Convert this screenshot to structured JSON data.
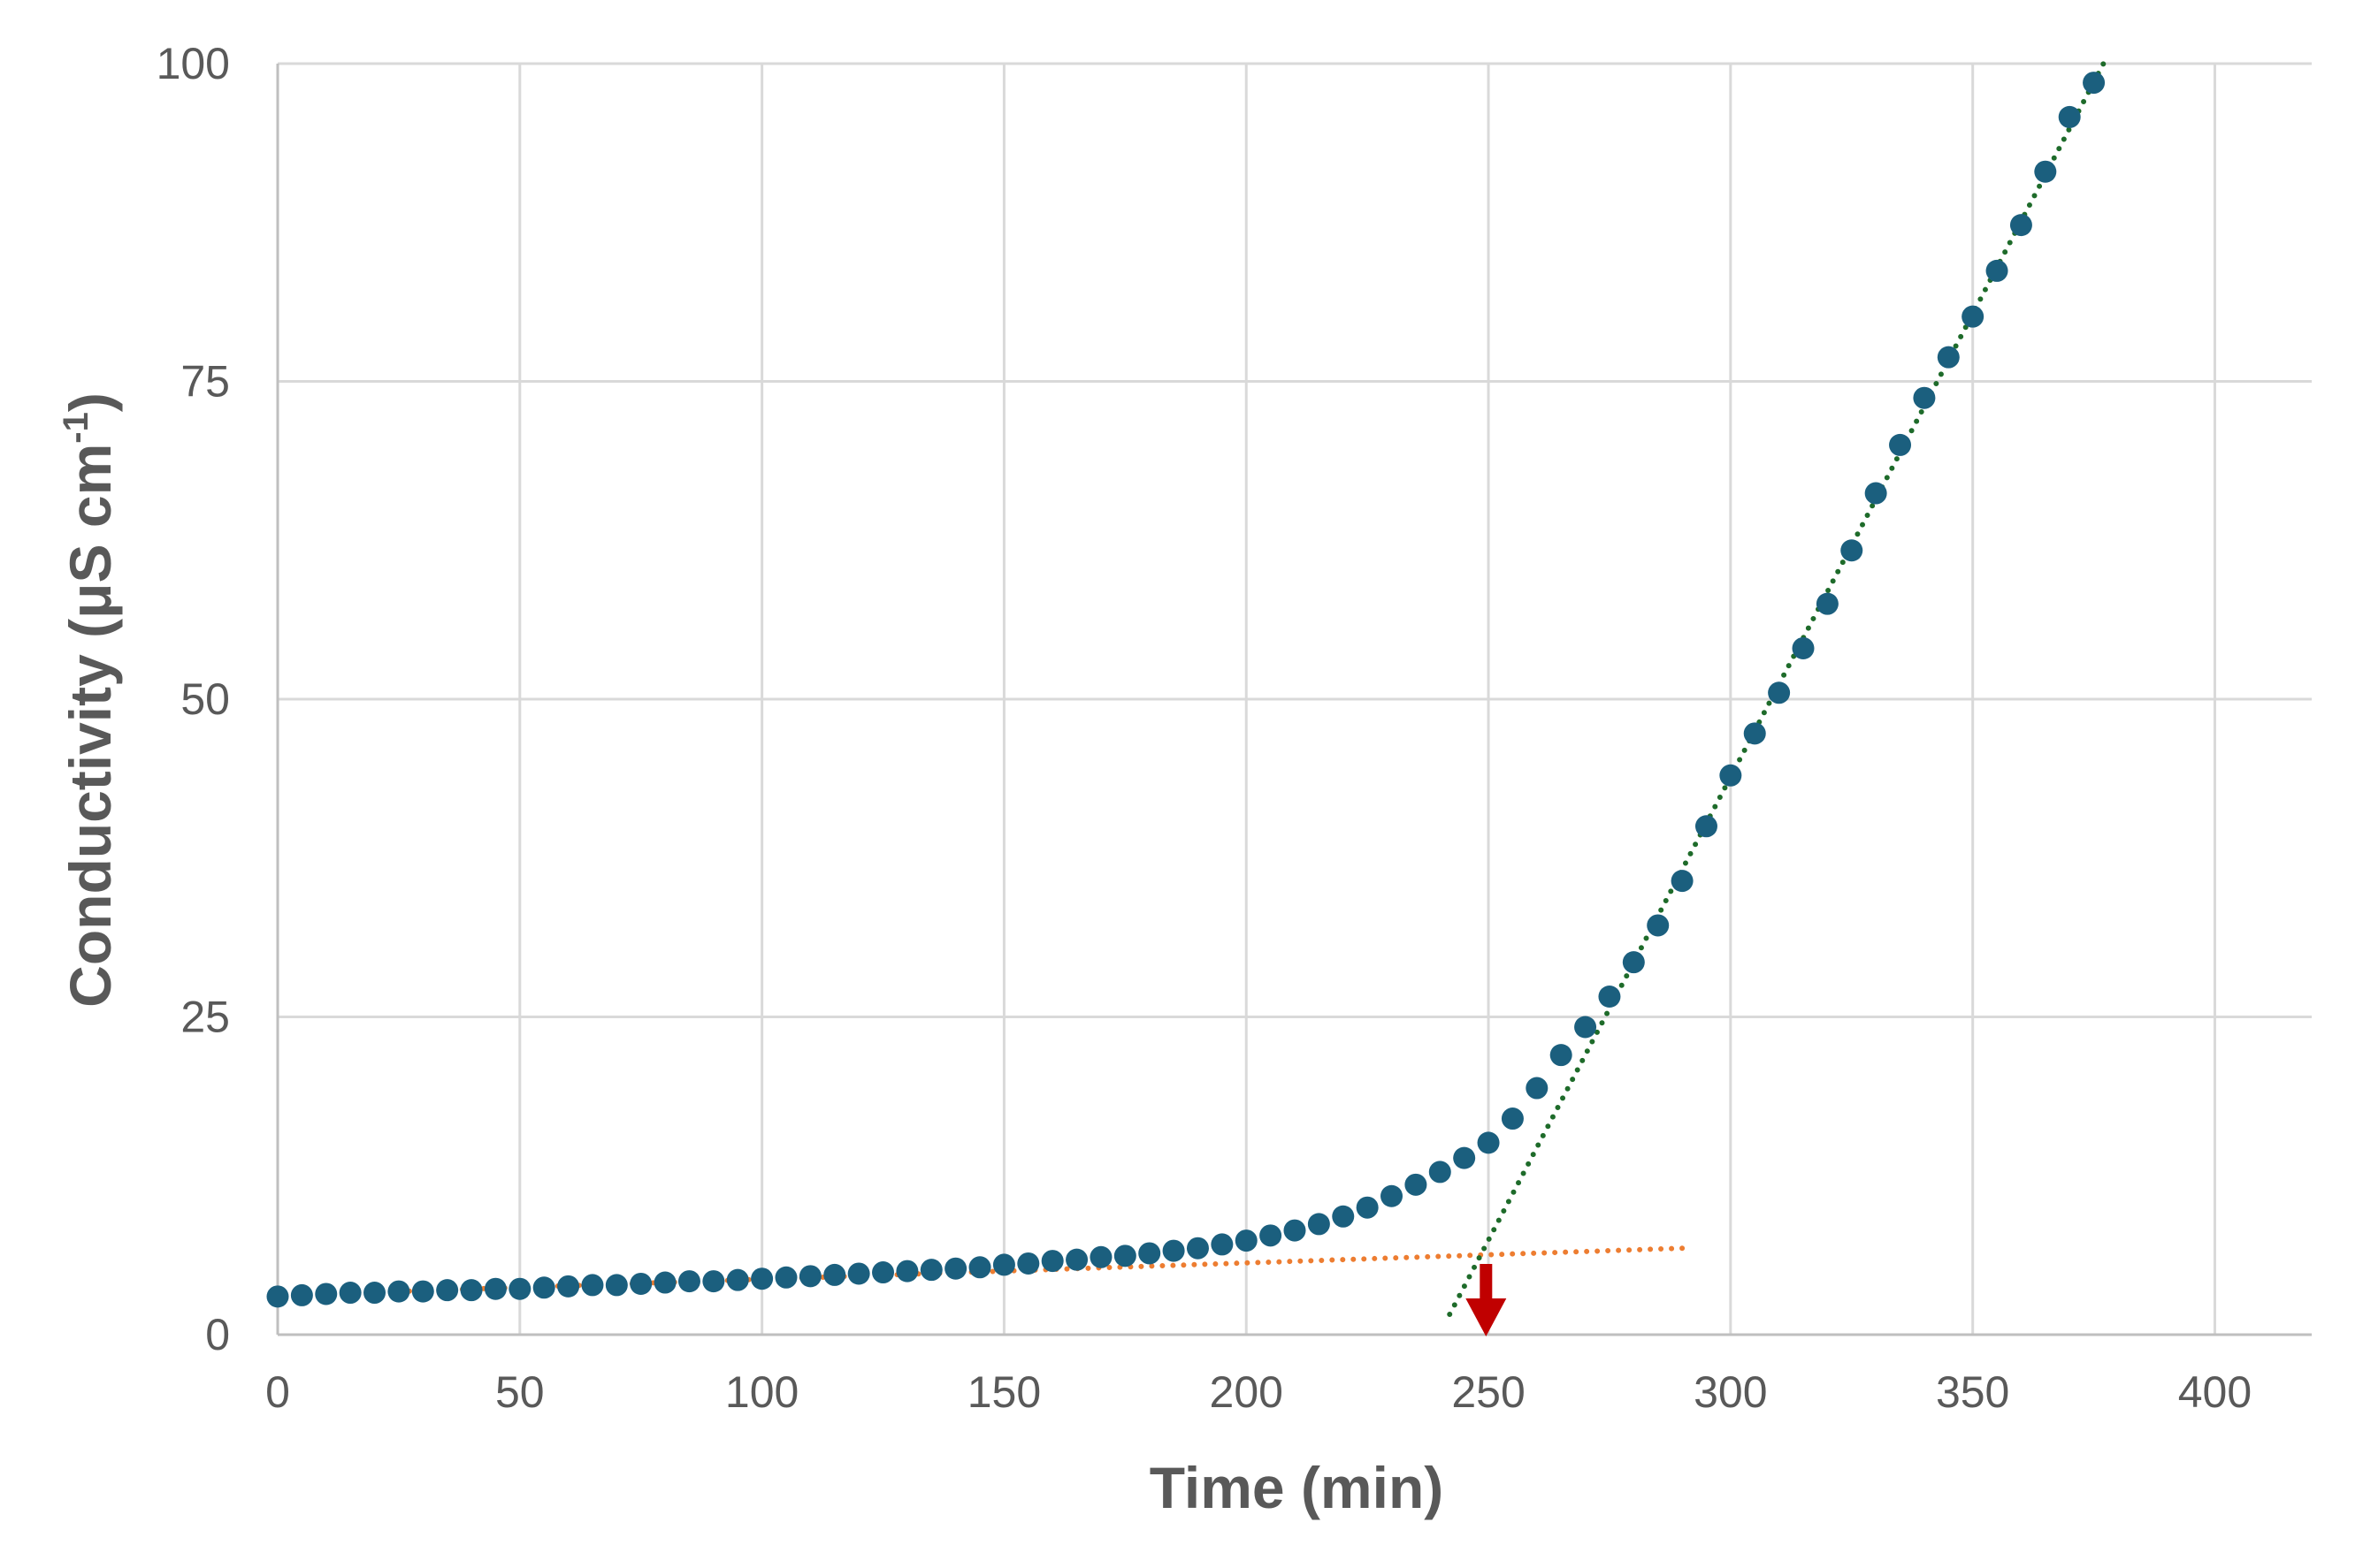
{
  "chart_data": {
    "type": "scatter",
    "xlabel": "Time (min)",
    "ylabel_main": "Conductivity (μS cm",
    "ylabel_sup": "-1",
    "ylabel_close": ")",
    "xlim": [
      0,
      420
    ],
    "ylim": [
      0,
      100
    ],
    "x_ticks": [
      0,
      50,
      100,
      150,
      200,
      250,
      300,
      350,
      400
    ],
    "y_ticks": [
      0,
      25,
      50,
      75,
      100
    ],
    "grid": true,
    "colors": {
      "points": "#1b5f7e",
      "baseline_fit": "#ed7d31",
      "rise_fit": "#1e6b2a",
      "arrow": "#c00000",
      "grid": "#d9d9d9",
      "axis": "#bfbfbf",
      "text": "#595959"
    },
    "series": [
      {
        "x": [
          0,
          5,
          10,
          15,
          20,
          25,
          30,
          35,
          40,
          45,
          50,
          55,
          60,
          65,
          70,
          75,
          80,
          85,
          90,
          95,
          100,
          105,
          110,
          115,
          120,
          125,
          130,
          135,
          140,
          145,
          150,
          155,
          160,
          165,
          170,
          175,
          180,
          185,
          190,
          195,
          200,
          205,
          210,
          215,
          220,
          225,
          230,
          235,
          240,
          245,
          250,
          255,
          260,
          265,
          270,
          275,
          280,
          285,
          290,
          295,
          300,
          305,
          310,
          315,
          320,
          325,
          330,
          335,
          340,
          345,
          350,
          355,
          360,
          365,
          370,
          375
        ],
        "y": [
          3.0,
          3.1,
          3.2,
          3.3,
          3.3,
          3.4,
          3.4,
          3.5,
          3.5,
          3.6,
          3.6,
          3.7,
          3.8,
          3.9,
          3.9,
          4.0,
          4.1,
          4.2,
          4.2,
          4.3,
          4.4,
          4.5,
          4.6,
          4.7,
          4.8,
          4.9,
          5.0,
          5.1,
          5.2,
          5.3,
          5.5,
          5.6,
          5.8,
          5.9,
          6.1,
          6.2,
          6.4,
          6.6,
          6.8,
          7.1,
          7.4,
          7.8,
          8.2,
          8.7,
          9.3,
          10.0,
          10.9,
          11.8,
          12.8,
          13.9,
          15.1,
          17.0,
          19.4,
          22.0,
          24.2,
          26.6,
          29.3,
          32.2,
          35.7,
          40.0,
          44.0,
          47.3,
          50.5,
          54.0,
          57.5,
          61.7,
          66.2,
          70.0,
          73.7,
          76.9,
          80.1,
          83.7,
          87.3,
          91.5,
          95.8,
          98.5
        ]
      }
    ],
    "trendlines": [
      {
        "x": [
          25,
          290
        ],
        "y": [
          3.4,
          6.8
        ]
      },
      {
        "x": [
          242,
          377
        ],
        "y": [
          1.6,
          100
        ]
      }
    ],
    "marker_x": 249.5
  }
}
